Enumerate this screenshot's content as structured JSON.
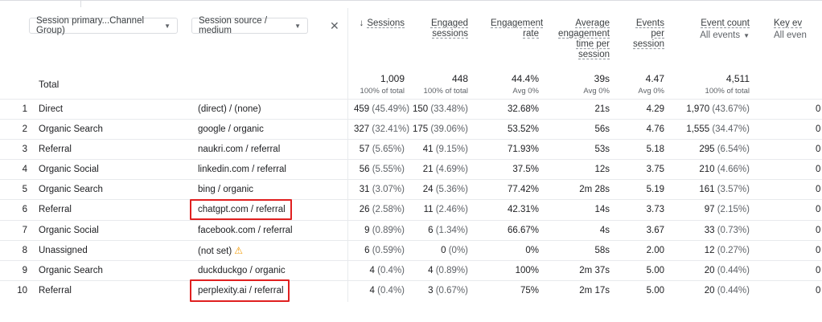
{
  "dimensions": {
    "primary": "Session primary...Channel Group)",
    "secondary": "Session source / medium"
  },
  "metrics": [
    {
      "label": "Sessions",
      "sorted": true
    },
    {
      "label": "Engaged sessions"
    },
    {
      "label": "Engagement rate"
    },
    {
      "label": "Average engagement time per session"
    },
    {
      "label": "Events per session"
    },
    {
      "label": "Event count",
      "sub": "All events"
    },
    {
      "label": "Key ev",
      "sub": "All even"
    }
  ],
  "totals": {
    "label": "Total",
    "sessions": "1,009",
    "sessions_sub": "100% of total",
    "engaged": "448",
    "engaged_sub": "100% of total",
    "rate": "44.4%",
    "rate_sub": "Avg 0%",
    "avg_time": "39s",
    "avg_time_sub": "Avg 0%",
    "eps": "4.47",
    "eps_sub": "Avg 0%",
    "events": "4,511",
    "events_sub": "100% of total"
  },
  "rows": [
    {
      "idx": "1",
      "channel": "Direct",
      "source": "(direct) / (none)",
      "sessions": "459",
      "sessions_pct": "(45.49%)",
      "engaged": "150",
      "engaged_pct": "(33.48%)",
      "rate": "32.68%",
      "avg_time": "21s",
      "eps": "4.29",
      "events": "1,970",
      "events_pct": "(43.67%)",
      "key": "0"
    },
    {
      "idx": "2",
      "channel": "Organic Search",
      "source": "google / organic",
      "sessions": "327",
      "sessions_pct": "(32.41%)",
      "engaged": "175",
      "engaged_pct": "(39.06%)",
      "rate": "53.52%",
      "avg_time": "56s",
      "eps": "4.76",
      "events": "1,555",
      "events_pct": "(34.47%)",
      "key": "0"
    },
    {
      "idx": "3",
      "channel": "Referral",
      "source": "naukri.com / referral",
      "sessions": "57",
      "sessions_pct": "(5.65%)",
      "engaged": "41",
      "engaged_pct": "(9.15%)",
      "rate": "71.93%",
      "avg_time": "53s",
      "eps": "5.18",
      "events": "295",
      "events_pct": "(6.54%)",
      "key": "0"
    },
    {
      "idx": "4",
      "channel": "Organic Social",
      "source": "linkedin.com / referral",
      "sessions": "56",
      "sessions_pct": "(5.55%)",
      "engaged": "21",
      "engaged_pct": "(4.69%)",
      "rate": "37.5%",
      "avg_time": "12s",
      "eps": "3.75",
      "events": "210",
      "events_pct": "(4.66%)",
      "key": "0"
    },
    {
      "idx": "5",
      "channel": "Organic Search",
      "source": "bing / organic",
      "sessions": "31",
      "sessions_pct": "(3.07%)",
      "engaged": "24",
      "engaged_pct": "(5.36%)",
      "rate": "77.42%",
      "avg_time": "2m 28s",
      "eps": "5.19",
      "events": "161",
      "events_pct": "(3.57%)",
      "key": "0"
    },
    {
      "idx": "6",
      "channel": "Referral",
      "source": "chatgpt.com / referral",
      "sessions": "26",
      "sessions_pct": "(2.58%)",
      "engaged": "11",
      "engaged_pct": "(2.46%)",
      "rate": "42.31%",
      "avg_time": "14s",
      "eps": "3.73",
      "events": "97",
      "events_pct": "(2.15%)",
      "key": "0"
    },
    {
      "idx": "7",
      "channel": "Organic Social",
      "source": "facebook.com / referral",
      "sessions": "9",
      "sessions_pct": "(0.89%)",
      "engaged": "6",
      "engaged_pct": "(1.34%)",
      "rate": "66.67%",
      "avg_time": "4s",
      "eps": "3.67",
      "events": "33",
      "events_pct": "(0.73%)",
      "key": "0"
    },
    {
      "idx": "8",
      "channel": "Unassigned",
      "source": "(not set)",
      "sessions": "6",
      "sessions_pct": "(0.59%)",
      "engaged": "0",
      "engaged_pct": "(0%)",
      "rate": "0%",
      "avg_time": "58s",
      "eps": "2.00",
      "events": "12",
      "events_pct": "(0.27%)",
      "key": "0"
    },
    {
      "idx": "9",
      "channel": "Organic Search",
      "source": "duckduckgo / organic",
      "sessions": "4",
      "sessions_pct": "(0.4%)",
      "engaged": "4",
      "engaged_pct": "(0.89%)",
      "rate": "100%",
      "avg_time": "2m 37s",
      "eps": "5.00",
      "events": "20",
      "events_pct": "(0.44%)",
      "key": "0"
    },
    {
      "idx": "10",
      "channel": "Referral",
      "source": "perplexity.ai / referral",
      "sessions": "4",
      "sessions_pct": "(0.4%)",
      "engaged": "3",
      "engaged_pct": "(0.67%)",
      "rate": "75%",
      "avg_time": "2m 17s",
      "eps": "5.00",
      "events": "20",
      "events_pct": "(0.44%)",
      "key": "0"
    }
  ],
  "icons": {
    "dropdown": "chevron-down-icon",
    "close": "close-icon",
    "sort": "arrow-down-icon",
    "warning": "warning-triangle-icon"
  },
  "colors": {
    "highlight": "#e02020",
    "warning": "#f29900"
  }
}
